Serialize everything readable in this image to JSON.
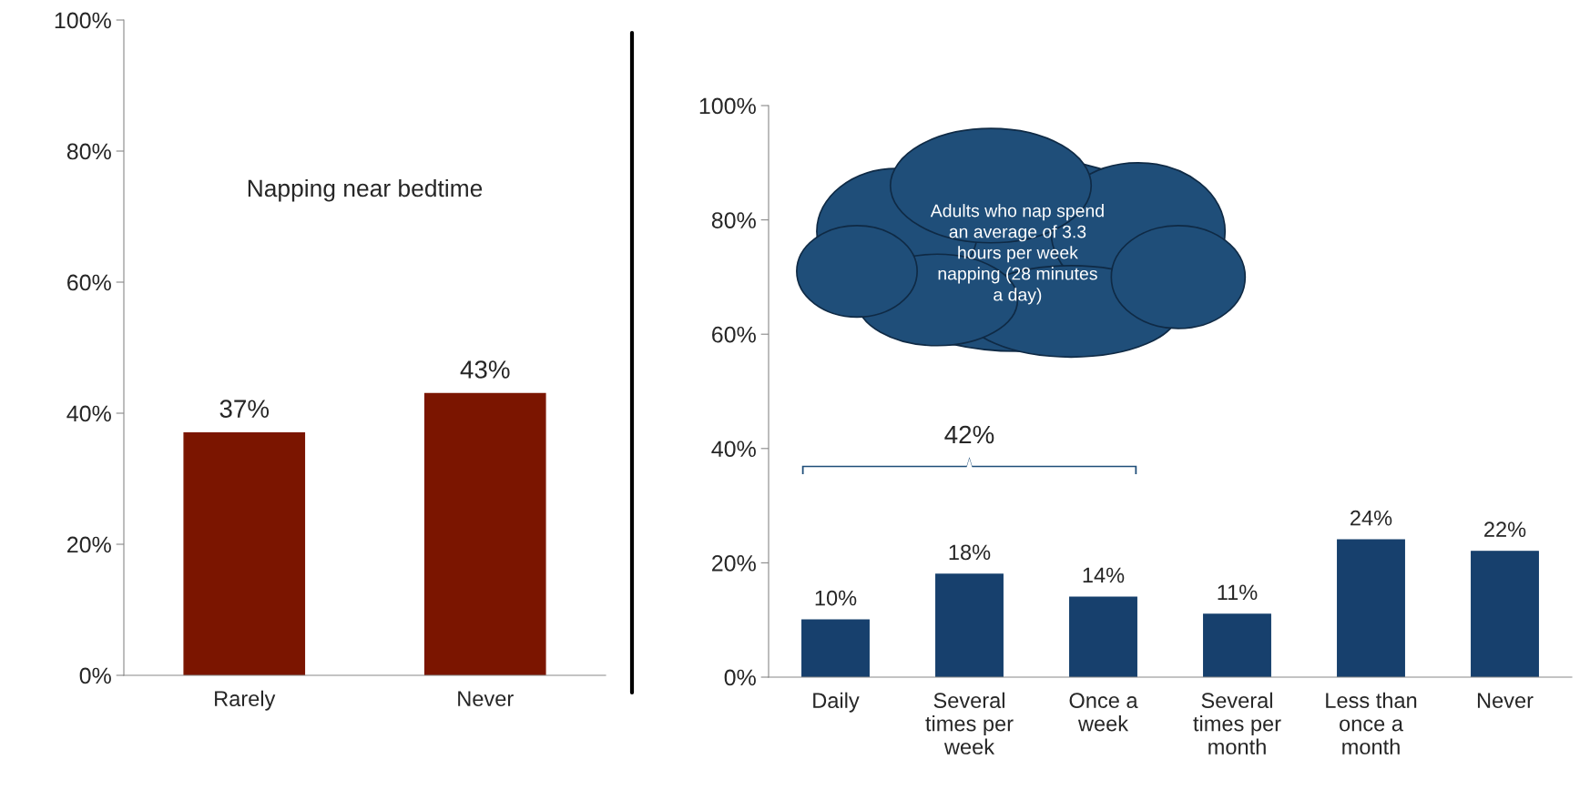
{
  "chart_data": [
    {
      "type": "bar",
      "title": "Napping near bedtime",
      "categories": [
        "Rarely",
        "Never"
      ],
      "values": [
        37,
        43
      ],
      "color": "#7b1500",
      "ylim": [
        0,
        100
      ],
      "yticks": [
        {
          "value": 0,
          "label": "0%"
        },
        {
          "value": 20,
          "label": "20%"
        },
        {
          "value": 40,
          "label": "40%"
        },
        {
          "value": 60,
          "label": "60%"
        },
        {
          "value": 80,
          "label": "80%"
        },
        {
          "value": 100,
          "label": "100%"
        }
      ],
      "value_labels": [
        "37%",
        "43%"
      ],
      "grid": false
    },
    {
      "type": "bar",
      "categories": [
        "Daily",
        "Several times per week",
        "Once a week",
        "Several times per month",
        "Less than once a month",
        "Never"
      ],
      "values": [
        10,
        18,
        14,
        11,
        24,
        22
      ],
      "color": "#17406d",
      "ylim": [
        0,
        100
      ],
      "yticks": [
        {
          "value": 0,
          "label": "0%"
        },
        {
          "value": 20,
          "label": "20%"
        },
        {
          "value": 40,
          "label": "40%"
        },
        {
          "value": 60,
          "label": "60%"
        },
        {
          "value": 80,
          "label": "80%"
        },
        {
          "value": 100,
          "label": "100%"
        }
      ],
      "value_labels": [
        "10%",
        "18%",
        "14%",
        "11%",
        "24%",
        "22%"
      ],
      "annotations": [
        "Adults who nap spend an average of 3.3 hours per week napping (28 minutes a day)",
        "42%"
      ],
      "grid": false
    }
  ]
}
